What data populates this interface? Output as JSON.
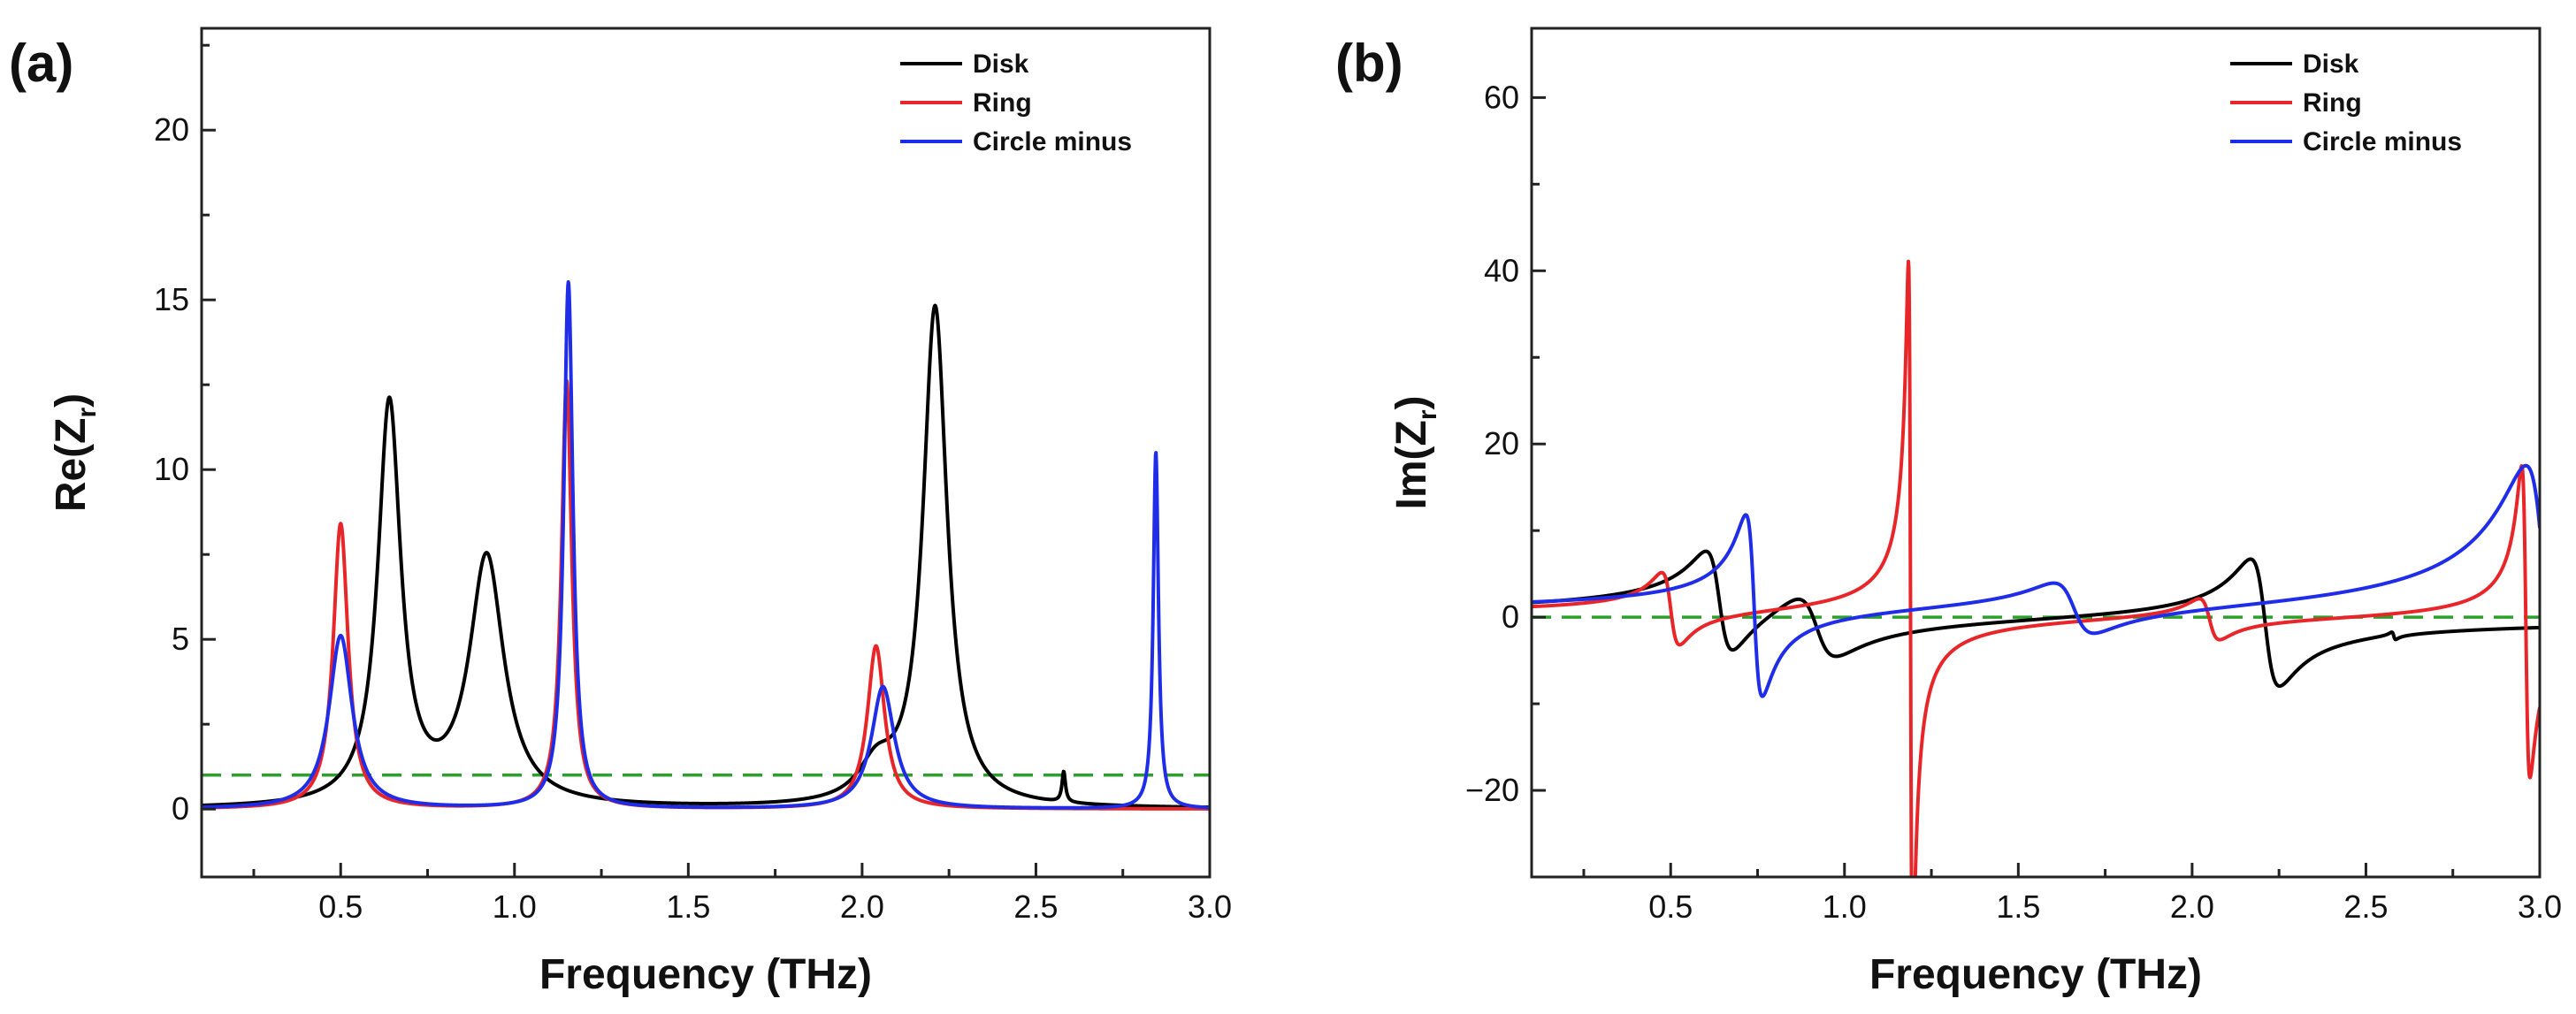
{
  "chart_data": [
    {
      "id": "a",
      "panel_label": "(a)",
      "type": "line",
      "xlabel": "Frequency (THz)",
      "ylabel_main": "Re(Z",
      "ylabel_sub": "r",
      "ylabel_close": ")",
      "xlim": [
        0.1,
        3.0
      ],
      "ylim": [
        -2,
        23
      ],
      "xticks": [
        0.5,
        1.0,
        1.5,
        2.0,
        2.5,
        3.0
      ],
      "xtick_labels": [
        "0.5",
        "1.0",
        "1.5",
        "2.0",
        "2.5",
        "3.0"
      ],
      "yticks": [
        0,
        5,
        10,
        15,
        20
      ],
      "ytick_labels": [
        "0",
        "5",
        "10",
        "15",
        "20"
      ],
      "reference_line": {
        "y": 1,
        "style": "dashed",
        "color": "#2ca02c"
      },
      "legend": {
        "position": "top-right",
        "entries": [
          "Disk",
          "Ring",
          "Circle minus"
        ]
      },
      "series": [
        {
          "name": "Disk",
          "color": "#000000",
          "model": "lorentz",
          "peaks": [
            {
              "f0": 0.64,
              "amp": 11.8,
              "w": 0.04
            },
            {
              "f0": 0.92,
              "amp": 7.3,
              "w": 0.06
            },
            {
              "f0": 2.04,
              "amp": 1.0,
              "w": 0.06
            },
            {
              "f0": 2.21,
              "amp": 14.7,
              "w": 0.042
            },
            {
              "f0": 2.58,
              "amp": 0.9,
              "w": 0.006
            }
          ]
        },
        {
          "name": "Ring",
          "color": "#e8262a",
          "model": "lorentz",
          "peaks": [
            {
              "f0": 0.5,
              "amp": 8.4,
              "w": 0.026
            },
            {
              "f0": 1.15,
              "amp": 12.6,
              "w": 0.018
            },
            {
              "f0": 2.04,
              "amp": 4.8,
              "w": 0.03
            }
          ]
        },
        {
          "name": "Circle minus",
          "color": "#1f2de8",
          "model": "lorentz",
          "peaks": [
            {
              "f0": 0.5,
              "amp": 5.1,
              "w": 0.04
            },
            {
              "f0": 1.155,
              "amp": 15.5,
              "w": 0.016
            },
            {
              "f0": 2.06,
              "amp": 3.6,
              "w": 0.04
            },
            {
              "f0": 2.845,
              "amp": 10.5,
              "w": 0.009
            }
          ]
        }
      ]
    },
    {
      "id": "b",
      "panel_label": "(b)",
      "type": "line",
      "xlabel": "Frequency (THz)",
      "ylabel_main": "Im(Z",
      "ylabel_sub": "r",
      "ylabel_close": ")",
      "xlim": [
        0.1,
        3.0
      ],
      "ylim": [
        -30,
        68
      ],
      "xticks": [
        0.5,
        1.0,
        1.5,
        2.0,
        2.5,
        3.0
      ],
      "xtick_labels": [
        "0.5",
        "1.0",
        "1.5",
        "2.0",
        "2.5",
        "3.0"
      ],
      "yticks": [
        -20,
        0,
        20,
        40,
        60
      ],
      "ytick_labels": [
        "−20",
        "0",
        "20",
        "40",
        "60"
      ],
      "reference_line": {
        "y": 0,
        "style": "dashed",
        "color": "#2ca02c"
      },
      "legend": {
        "position": "top-right",
        "entries": [
          "Disk",
          "Ring",
          "Circle minus"
        ]
      },
      "series": [
        {
          "name": "Disk",
          "color": "#000000",
          "model": "dispersion",
          "peaks": [
            {
              "f0": 0.64,
              "amp": 11.8,
              "w": 0.04
            },
            {
              "f0": 0.92,
              "amp": 7.3,
              "w": 0.06
            },
            {
              "f0": 2.21,
              "amp": 14.7,
              "w": 0.042
            },
            {
              "f0": 2.58,
              "amp": 0.9,
              "w": 0.006
            }
          ]
        },
        {
          "name": "Ring",
          "color": "#e8262a",
          "model": "dispersion",
          "peaks": [
            {
              "f0": 0.5,
              "amp": 8.4,
              "w": 0.026
            },
            {
              "f0": 1.19,
              "amp": 82.0,
              "w": 0.006
            },
            {
              "f0": 2.05,
              "amp": 4.8,
              "w": 0.03
            },
            {
              "f0": 2.96,
              "amp": 36.0,
              "w": 0.012
            }
          ]
        },
        {
          "name": "Circle minus",
          "color": "#1f2de8",
          "model": "dispersion",
          "peaks": [
            {
              "f0": 0.74,
              "amp": 21.0,
              "w": 0.024
            },
            {
              "f0": 1.66,
              "amp": 6.0,
              "w": 0.06
            },
            {
              "f0": 3.02,
              "amp": 36.0,
              "w": 0.06
            }
          ]
        }
      ]
    }
  ]
}
